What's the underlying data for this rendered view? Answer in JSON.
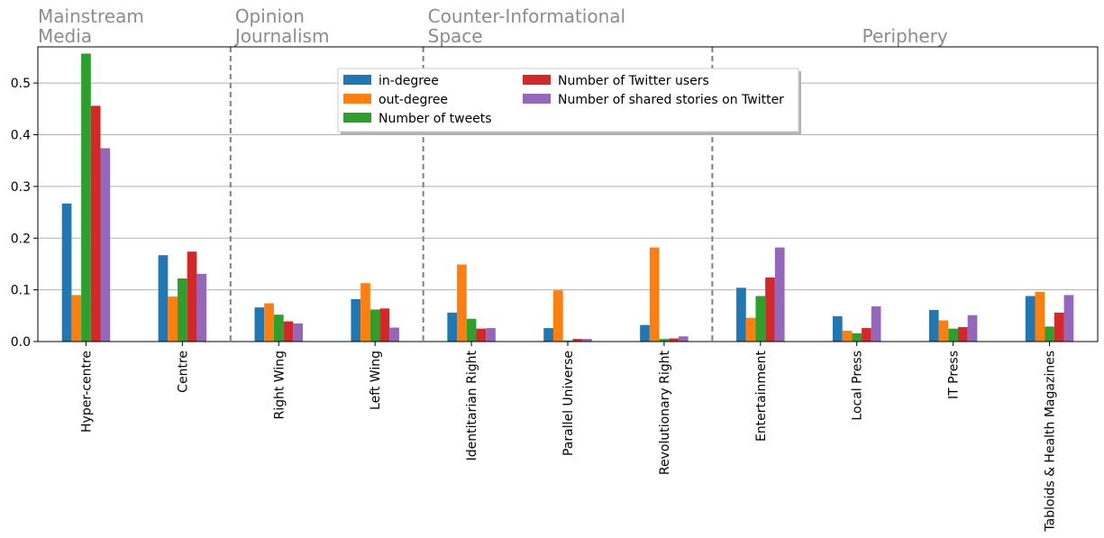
{
  "chart_data": {
    "type": "bar",
    "categories": [
      "Hyper-centre",
      "Centre",
      "Right Wing",
      "Left Wing",
      "Identitarian Right",
      "Parallel Universe",
      "Revolutionary Right",
      "Entertainment",
      "Local Press",
      "IT Press",
      "Tabloids & Health Magazines"
    ],
    "series": [
      {
        "name": "in-degree",
        "color": "#1f77b4",
        "values": [
          0.267,
          0.167,
          0.066,
          0.082,
          0.056,
          0.026,
          0.032,
          0.104,
          0.049,
          0.061,
          0.088
        ]
      },
      {
        "name": "out-degree",
        "color": "#ff7f0e",
        "values": [
          0.09,
          0.087,
          0.074,
          0.113,
          0.149,
          0.099,
          0.182,
          0.046,
          0.021,
          0.041,
          0.096
        ]
      },
      {
        "name": "Number of tweets",
        "color": "#2ca02c",
        "values": [
          0.557,
          0.122,
          0.052,
          0.062,
          0.044,
          0.002,
          0.005,
          0.088,
          0.016,
          0.025,
          0.029
        ]
      },
      {
        "name": "Number of Twitter users",
        "color": "#d62728",
        "values": [
          0.456,
          0.174,
          0.039,
          0.064,
          0.025,
          0.005,
          0.006,
          0.124,
          0.026,
          0.028,
          0.056
        ]
      },
      {
        "name": "Number of shared stories on Twitter",
        "color": "#9467bd",
        "values": [
          0.374,
          0.131,
          0.035,
          0.027,
          0.026,
          0.005,
          0.01,
          0.182,
          0.068,
          0.051,
          0.09
        ]
      }
    ],
    "yticks": [
      "0.0",
      "0.1",
      "0.2",
      "0.3",
      "0.4",
      "0.5"
    ],
    "ylim": [
      0,
      0.57
    ],
    "grid": "horizontal",
    "legend_position": "top-center",
    "groups": [
      {
        "label": [
          "Mainstream",
          "Media"
        ],
        "start": 0,
        "end": 1
      },
      {
        "label": [
          "Opinion",
          "Journalism"
        ],
        "start": 2,
        "end": 3
      },
      {
        "label": [
          "Counter-Informational",
          "Space"
        ],
        "start": 4,
        "end": 6
      },
      {
        "label": [
          "Periphery"
        ],
        "start": 7,
        "end": 10
      }
    ]
  }
}
